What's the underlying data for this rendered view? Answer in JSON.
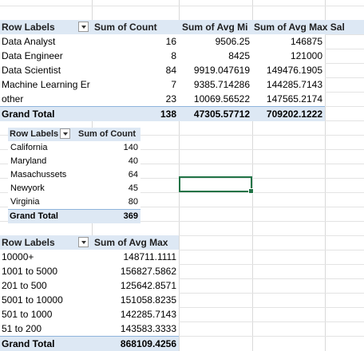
{
  "pivot_role_counts": {
    "headers": [
      "Row Labels",
      "Sum of Count",
      "Sum of Avg Mi",
      "Sum of Avg Max Sal"
    ],
    "rows": [
      {
        "label": "Data Analyst",
        "count": "16",
        "avg_min": "9506.25",
        "avg_max": "146875"
      },
      {
        "label": "Data Engineer",
        "count": "8",
        "avg_min": "8425",
        "avg_max": "121000"
      },
      {
        "label": "Data Scientist",
        "count": "84",
        "avg_min": "9919.047619",
        "avg_max": "149476.1905"
      },
      {
        "label": "Machine Learning Er",
        "count": "7",
        "avg_min": "9385.714286",
        "avg_max": "144285.7143"
      },
      {
        "label": "other",
        "count": "23",
        "avg_min": "10069.56522",
        "avg_max": "147565.2174"
      }
    ],
    "total": {
      "label": "Grand Total",
      "count": "138",
      "avg_min": "47305.57712",
      "avg_max": "709202.1222"
    }
  },
  "pivot_state_counts": {
    "headers": [
      "Row Labels",
      "Sum of Count"
    ],
    "rows": [
      {
        "label": "California",
        "count": "140"
      },
      {
        "label": "Maryland",
        "count": "40"
      },
      {
        "label": "Masachussets",
        "count": "64"
      },
      {
        "label": "Newyork",
        "count": "45"
      },
      {
        "label": "Virginia",
        "count": "80"
      }
    ],
    "total": {
      "label": "Grand Total",
      "count": "369"
    }
  },
  "pivot_size_avg_max": {
    "headers": [
      "Row Labels",
      "Sum of Avg Max"
    ],
    "rows": [
      {
        "label": "10000+",
        "value": "148711.1111"
      },
      {
        "label": "1001 to 5000",
        "value": "156827.5862"
      },
      {
        "label": "201 to 500",
        "value": "125642.8571"
      },
      {
        "label": "5001 to 10000",
        "value": "151058.8235"
      },
      {
        "label": "501 to 1000",
        "value": "142285.7143"
      },
      {
        "label": "51 to 200",
        "value": "143583.3333"
      }
    ],
    "total": {
      "label": "Grand Total",
      "value": "868109.4256"
    }
  },
  "colors": {
    "header_fill": "#dde8f4",
    "header_border": "#8fb4dc",
    "selection": "#217346",
    "gridline": "#d9d9d9"
  },
  "icons": {
    "filter_dropdown": "chevron-down-icon"
  }
}
